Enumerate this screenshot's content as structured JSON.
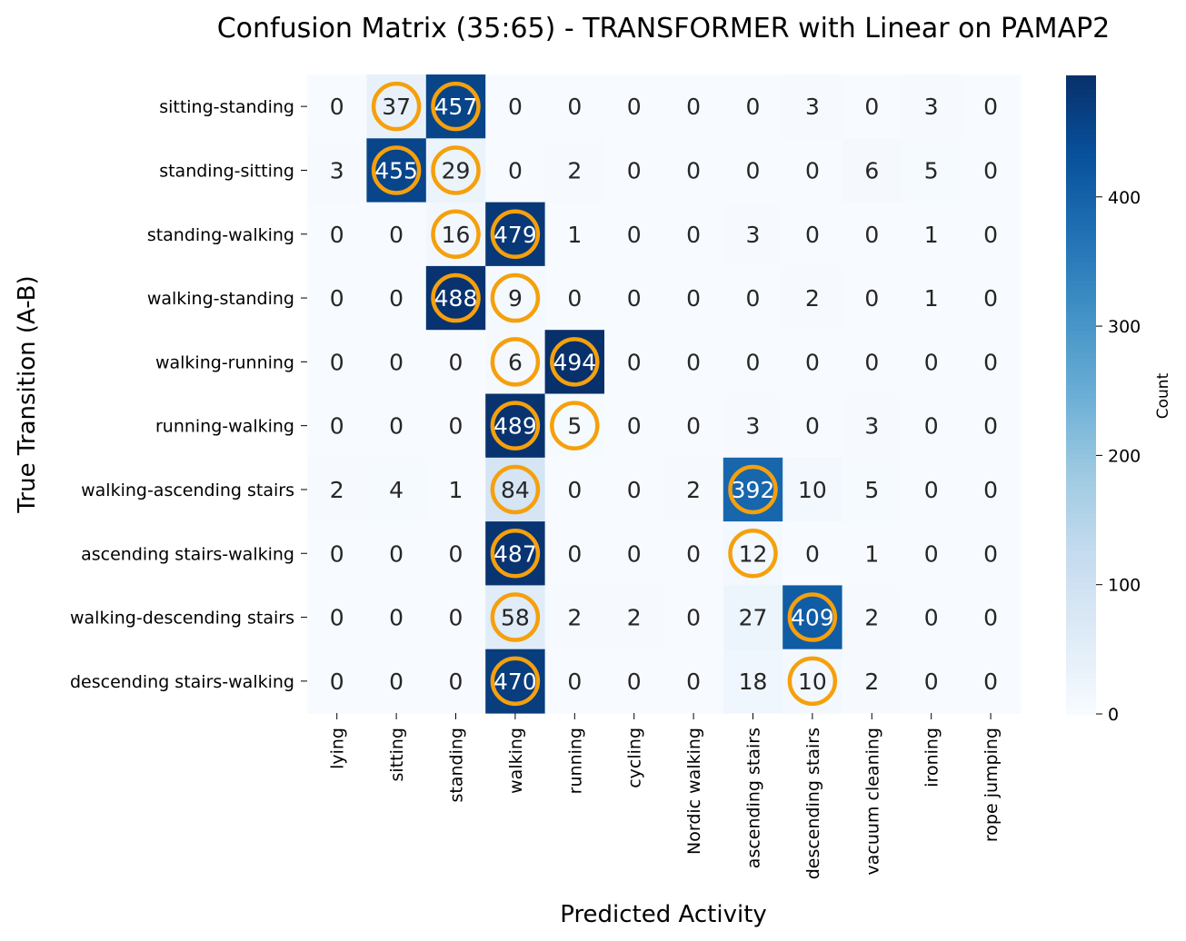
{
  "chart_data": {
    "type": "heatmap",
    "title": "Confusion Matrix (35:65) - TRANSFORMER with Linear on PAMAP2",
    "xlabel": "Predicted Activity",
    "ylabel": "True Transition (A-B)",
    "x_categories": [
      "lying",
      "sitting",
      "standing",
      "walking",
      "running",
      "cycling",
      "Nordic walking",
      "ascending stairs",
      "descending stairs",
      "vacuum cleaning",
      "ironing",
      "rope jumping"
    ],
    "y_categories": [
      "sitting-standing",
      "standing-sitting",
      "standing-walking",
      "walking-standing",
      "walking-running",
      "running-walking",
      "walking-ascending stairs",
      "ascending stairs-walking",
      "walking-descending stairs",
      "descending stairs-walking"
    ],
    "values": [
      [
        0,
        37,
        457,
        0,
        0,
        0,
        0,
        0,
        3,
        0,
        3,
        0
      ],
      [
        3,
        455,
        29,
        0,
        2,
        0,
        0,
        0,
        0,
        6,
        5,
        0
      ],
      [
        0,
        0,
        16,
        479,
        1,
        0,
        0,
        3,
        0,
        0,
        1,
        0
      ],
      [
        0,
        0,
        488,
        9,
        0,
        0,
        0,
        0,
        2,
        0,
        1,
        0
      ],
      [
        0,
        0,
        0,
        6,
        494,
        0,
        0,
        0,
        0,
        0,
        0,
        0
      ],
      [
        0,
        0,
        0,
        489,
        5,
        0,
        0,
        3,
        0,
        3,
        0,
        0
      ],
      [
        2,
        4,
        1,
        84,
        0,
        0,
        2,
        392,
        10,
        5,
        0,
        0
      ],
      [
        0,
        0,
        0,
        487,
        0,
        0,
        0,
        12,
        0,
        1,
        0,
        0
      ],
      [
        0,
        0,
        0,
        58,
        2,
        2,
        0,
        27,
        409,
        2,
        0,
        0
      ],
      [
        0,
        0,
        0,
        470,
        0,
        0,
        0,
        18,
        10,
        2,
        0,
        0
      ]
    ],
    "highlighted_cells": [
      [
        0,
        1
      ],
      [
        0,
        2
      ],
      [
        1,
        1
      ],
      [
        1,
        2
      ],
      [
        2,
        2
      ],
      [
        2,
        3
      ],
      [
        3,
        2
      ],
      [
        3,
        3
      ],
      [
        4,
        3
      ],
      [
        4,
        4
      ],
      [
        5,
        3
      ],
      [
        5,
        4
      ],
      [
        6,
        3
      ],
      [
        6,
        7
      ],
      [
        7,
        3
      ],
      [
        7,
        7
      ],
      [
        8,
        3
      ],
      [
        8,
        8
      ],
      [
        9,
        3
      ],
      [
        9,
        8
      ]
    ],
    "highlight_color": "#f5a00c",
    "colormap": "Blues",
    "colorbar": {
      "label": "Count",
      "min": 0,
      "max": 494,
      "ticks": [
        0,
        100,
        200,
        300,
        400
      ]
    },
    "grid": false
  }
}
